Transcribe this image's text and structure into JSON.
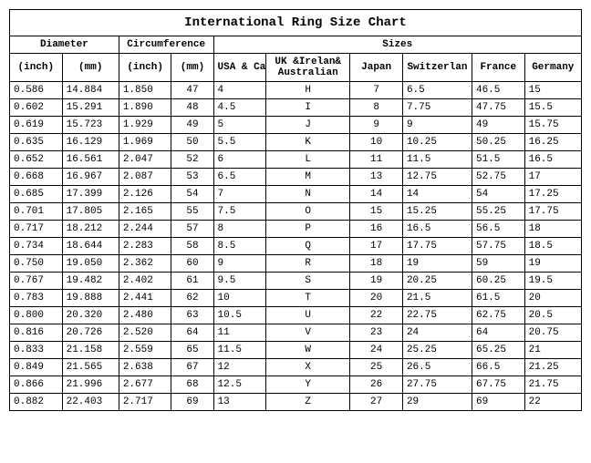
{
  "title": "International Ring Size Chart",
  "groupHeaders": [
    "Diameter",
    "Circumference",
    "Sizes"
  ],
  "columns": [
    "(inch)",
    "(mm)",
    "(inch)",
    "(mm)",
    "USA & Canada",
    "UK &Irelan& Australian",
    "Japan",
    "Switzerlan",
    "France",
    "Germany"
  ],
  "alignCenter": [
    false,
    false,
    false,
    true,
    false,
    true,
    true,
    false,
    false,
    false
  ],
  "rows": [
    [
      "0.586",
      "14.884",
      "1.850",
      "47",
      "4",
      "H",
      "7",
      "6.5",
      "46.5",
      "15"
    ],
    [
      "0.602",
      "15.291",
      "1.890",
      "48",
      "4.5",
      "I",
      "8",
      "7.75",
      "47.75",
      "15.5"
    ],
    [
      "0.619",
      "15.723",
      "1.929",
      "49",
      "5",
      "J",
      "9",
      "9",
      "49",
      "15.75"
    ],
    [
      "0.635",
      "16.129",
      "1.969",
      "50",
      "5.5",
      "K",
      "10",
      "10.25",
      "50.25",
      "16.25"
    ],
    [
      "0.652",
      "16.561",
      "2.047",
      "52",
      "6",
      "L",
      "11",
      "11.5",
      "51.5",
      "16.5"
    ],
    [
      "0.668",
      "16.967",
      "2.087",
      "53",
      "6.5",
      "M",
      "13",
      "12.75",
      "52.75",
      "17"
    ],
    [
      "0.685",
      "17.399",
      "2.126",
      "54",
      "7",
      "N",
      "14",
      "14",
      "54",
      "17.25"
    ],
    [
      "0.701",
      "17.805",
      "2.165",
      "55",
      "7.5",
      "O",
      "15",
      "15.25",
      "55.25",
      "17.75"
    ],
    [
      "0.717",
      "18.212",
      "2.244",
      "57",
      "8",
      "P",
      "16",
      "16.5",
      "56.5",
      "18"
    ],
    [
      "0.734",
      "18.644",
      "2.283",
      "58",
      "8.5",
      "Q",
      "17",
      "17.75",
      "57.75",
      "18.5"
    ],
    [
      "0.750",
      "19.050",
      "2.362",
      "60",
      "9",
      "R",
      "18",
      "19",
      "59",
      "19"
    ],
    [
      "0.767",
      "19.482",
      "2.402",
      "61",
      "9.5",
      "S",
      "19",
      "20.25",
      "60.25",
      "19.5"
    ],
    [
      "0.783",
      "19.888",
      "2.441",
      "62",
      "10",
      "T",
      "20",
      "21.5",
      "61.5",
      "20"
    ],
    [
      "0.800",
      "20.320",
      "2.480",
      "63",
      "10.5",
      "U",
      "22",
      "22.75",
      "62.75",
      "20.5"
    ],
    [
      "0.816",
      "20.726",
      "2.520",
      "64",
      "11",
      "V",
      "23",
      "24",
      "64",
      "20.75"
    ],
    [
      "0.833",
      "21.158",
      "2.559",
      "65",
      "11.5",
      "W",
      "24",
      "25.25",
      "65.25",
      "21"
    ],
    [
      "0.849",
      "21.565",
      "2.638",
      "67",
      "12",
      "X",
      "25",
      "26.5",
      "66.5",
      "21.25"
    ],
    [
      "0.866",
      "21.996",
      "2.677",
      "68",
      "12.5",
      "Y",
      "26",
      "27.75",
      "67.75",
      "21.75"
    ],
    [
      "0.882",
      "22.403",
      "2.717",
      "69",
      "13",
      "Z",
      "27",
      "29",
      "69",
      "22"
    ]
  ]
}
